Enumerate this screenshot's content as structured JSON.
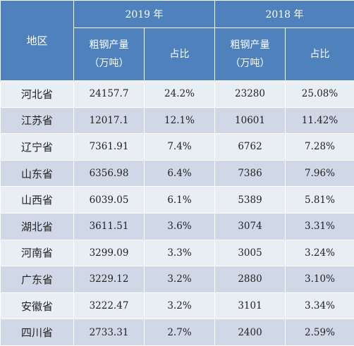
{
  "header": {
    "region_label": "地区",
    "year_2019": "2019 年",
    "year_2018": "2018 年",
    "output_label_line1": "粗钢产量",
    "output_label_line2": "（万吨）",
    "share_label": "占比"
  },
  "colors": {
    "header_bg": "#4f81bd",
    "row_light": "#e9edf4",
    "row_dark": "#d0d8e8"
  },
  "rows": [
    {
      "region": "河北省",
      "output_2019": "24157.7",
      "share_2019": "24.2%",
      "output_2018": "23280",
      "share_2018": "25.08%"
    },
    {
      "region": "江苏省",
      "output_2019": "12017.1",
      "share_2019": "12.1%",
      "output_2018": "10601",
      "share_2018": "11.42%"
    },
    {
      "region": "辽宁省",
      "output_2019": "7361.91",
      "share_2019": "7.4%",
      "output_2018": "6762",
      "share_2018": "7.28%"
    },
    {
      "region": "山东省",
      "output_2019": "6356.98",
      "share_2019": "6.4%",
      "output_2018": "7386",
      "share_2018": "7.96%"
    },
    {
      "region": "山西省",
      "output_2019": "6039.05",
      "share_2019": "6.1%",
      "output_2018": "5389",
      "share_2018": "5.81%"
    },
    {
      "region": "湖北省",
      "output_2019": "3611.51",
      "share_2019": "3.6%",
      "output_2018": "3074",
      "share_2018": "3.31%"
    },
    {
      "region": "河南省",
      "output_2019": "3299.09",
      "share_2019": "3.3%",
      "output_2018": "3005",
      "share_2018": "3.24%"
    },
    {
      "region": "广东省",
      "output_2019": "3229.12",
      "share_2019": "3.2%",
      "output_2018": "2880",
      "share_2018": "3.10%"
    },
    {
      "region": "安徽省",
      "output_2019": "3222.47",
      "share_2019": "3.2%",
      "output_2018": "3101",
      "share_2018": "3.34%"
    },
    {
      "region": "四川省",
      "output_2019": "2733.31",
      "share_2019": "2.7%",
      "output_2018": "2400",
      "share_2018": "2.59%"
    }
  ]
}
